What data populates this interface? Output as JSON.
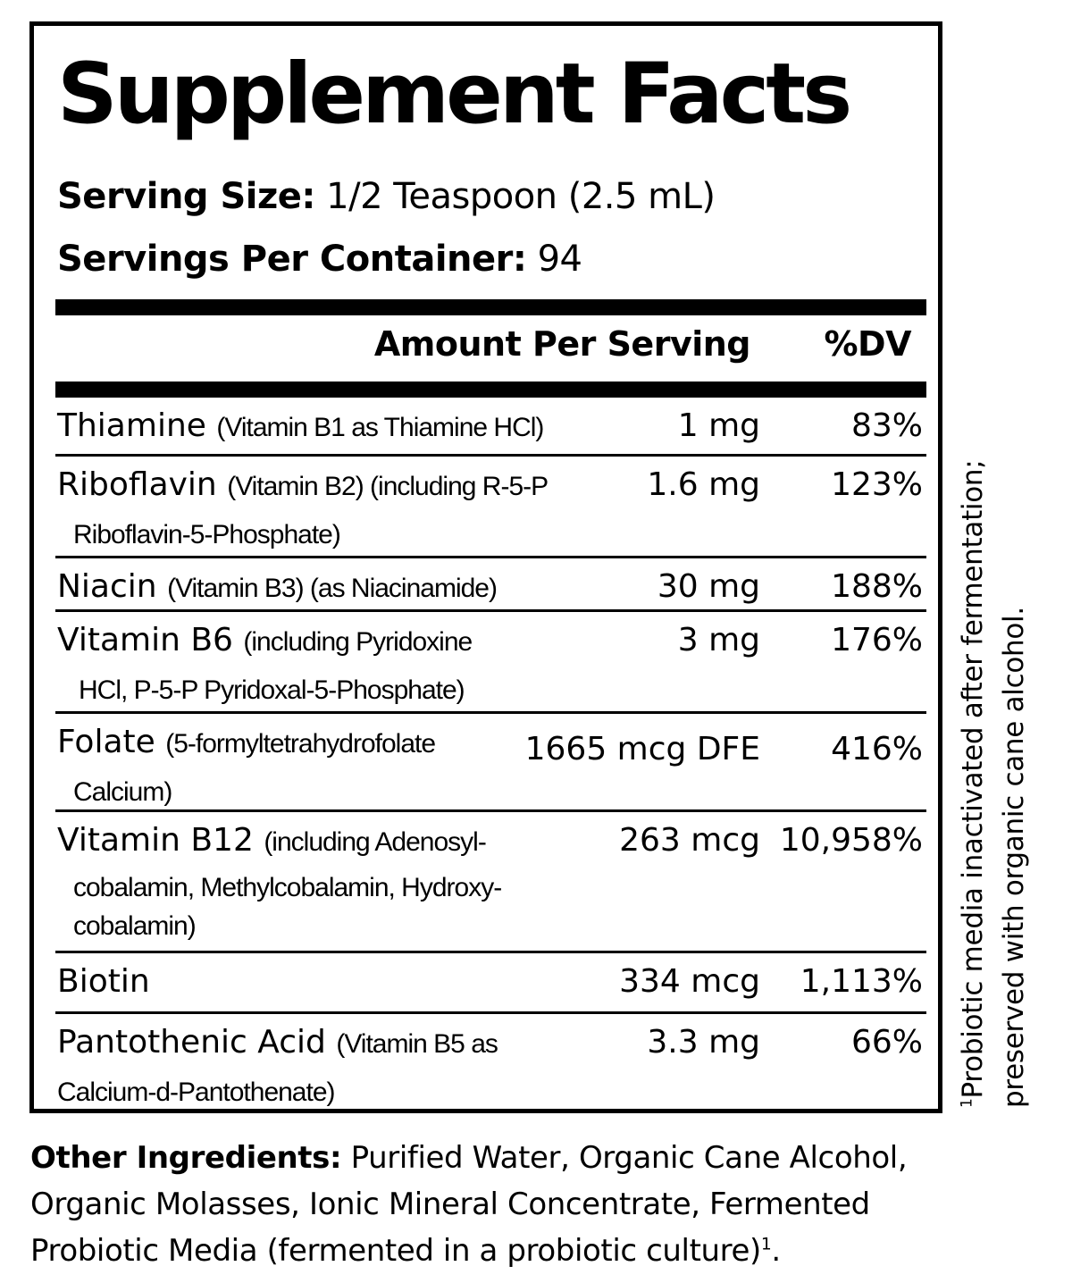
{
  "title": "Supplement Facts",
  "serving_size": {
    "label": "Serving Size:",
    "value": "1/2 Teaspoon (2.5 mL)"
  },
  "servings_per_container": {
    "label": "Servings Per Container:",
    "value": "94"
  },
  "columns": {
    "amount": "Amount Per Serving",
    "dv": "%DV"
  },
  "nutrients": [
    {
      "name": "Thiamine",
      "detail": "(Vitamin B1 as Thiamine HCl)",
      "cont": "",
      "amount": "1 mg",
      "dv": "83%"
    },
    {
      "name": "Riboflavin",
      "detail": "(Vitamin B2) (including R-5-P",
      "cont": "Riboflavin-5-Phosphate)",
      "amount": "1.6 mg",
      "dv": "123%"
    },
    {
      "name": "Niacin",
      "detail": "(Vitamin B3) (as Niacinamide)",
      "cont": "",
      "amount": "30 mg",
      "dv": "188%"
    },
    {
      "name": "Vitamin B6",
      "detail": "(including Pyridoxine",
      "cont": "HCl, P-5-P Pyridoxal-5-Phosphate)",
      "amount": "3 mg",
      "dv": "176%"
    },
    {
      "name": "Folate",
      "detail": "(5-formyltetrahydrofolate",
      "cont": "Calcium)",
      "amount": "1665 mcg DFE",
      "dv": "416%"
    },
    {
      "name": "Vitamin B12",
      "detail": "(including Adenosyl-",
      "cont": "cobalamin, Methylcobalamin, Hydroxy-",
      "cont2": "cobalamin)",
      "amount": "263 mcg",
      "dv": "10,958%"
    },
    {
      "name": "Biotin",
      "detail": "",
      "cont": "",
      "amount": "334 mcg",
      "dv": "1,113%"
    },
    {
      "name": "Pantothenic Acid",
      "detail": "(Vitamin B5 as",
      "cont": "Calcium-d-Pantothenate)",
      "amount": "3.3 mg",
      "dv": "66%"
    }
  ],
  "footnote": {
    "marker": "1",
    "line1": "Probiotic media inactivated after fermentation;",
    "line2": "preserved with organic cane alcohol."
  },
  "other_ingredients": {
    "label": "Other Ingredients:",
    "text": "Purified Water, Organic Cane Alcohol, Organic Molasses, Ionic Mineral Concentrate, Fermented Probiotic Media (fermented in a probiotic culture)",
    "marker": "1",
    "end": "."
  }
}
